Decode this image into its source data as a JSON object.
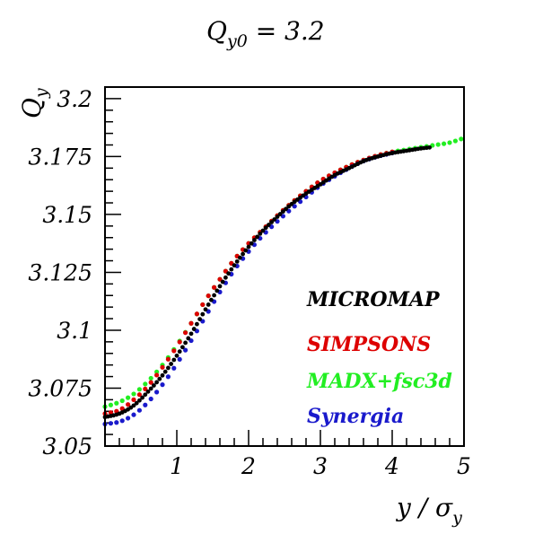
{
  "chart_data": {
    "type": "scatter",
    "title": "Qy0 = 3.2",
    "xlabel": "y / σy",
    "ylabel": "Qy",
    "xlim": [
      0,
      5
    ],
    "ylim": [
      3.05,
      3.205
    ],
    "x_ticks": [
      1,
      2,
      3,
      4,
      5
    ],
    "y_ticks": [
      3.05,
      3.075,
      3.1,
      3.125,
      3.15,
      3.175,
      3.2
    ],
    "x_tick_labels": [
      "1",
      "2",
      "3",
      "4",
      "5"
    ],
    "y_tick_labels": [
      "3.05",
      "3.075",
      "3.1",
      "3.125",
      "3.15",
      "3.175",
      "3.2"
    ],
    "grid": false,
    "legend_position": "lower-right",
    "series": [
      {
        "name": "MICROMAP",
        "color": "#000000",
        "x_range": [
          0.0,
          4.55
        ],
        "points": [
          [
            0.0,
            3.0625
          ],
          [
            0.2,
            3.064
          ],
          [
            0.4,
            3.0675
          ],
          [
            0.6,
            3.0735
          ],
          [
            0.8,
            3.0805
          ],
          [
            1.0,
            3.089
          ],
          [
            1.2,
            3.0985
          ],
          [
            1.4,
            3.109
          ],
          [
            1.6,
            3.119
          ],
          [
            1.8,
            3.128
          ],
          [
            2.0,
            3.136
          ],
          [
            2.2,
            3.143
          ],
          [
            2.4,
            3.149
          ],
          [
            2.6,
            3.1545
          ],
          [
            2.8,
            3.159
          ],
          [
            3.0,
            3.163
          ],
          [
            3.2,
            3.167
          ],
          [
            3.4,
            3.17
          ],
          [
            3.6,
            3.173
          ],
          [
            3.8,
            3.175
          ],
          [
            4.0,
            3.1765
          ],
          [
            4.2,
            3.1775
          ],
          [
            4.4,
            3.1785
          ],
          [
            4.55,
            3.179
          ]
        ]
      },
      {
        "name": "SIMPSONS",
        "color": "#dd0000",
        "x_range": [
          0.0,
          4.0
        ],
        "points": [
          [
            0.0,
            3.064
          ],
          [
            0.2,
            3.0655
          ],
          [
            0.4,
            3.07
          ],
          [
            0.6,
            3.076
          ],
          [
            0.8,
            3.084
          ],
          [
            1.0,
            3.093
          ],
          [
            1.2,
            3.103
          ],
          [
            1.4,
            3.113
          ],
          [
            1.6,
            3.122
          ],
          [
            1.8,
            3.1305
          ],
          [
            2.0,
            3.1375
          ],
          [
            2.2,
            3.1435
          ],
          [
            2.4,
            3.1495
          ],
          [
            2.6,
            3.155
          ],
          [
            2.8,
            3.16
          ],
          [
            3.0,
            3.1645
          ],
          [
            3.2,
            3.168
          ],
          [
            3.4,
            3.171
          ],
          [
            3.6,
            3.1735
          ],
          [
            3.8,
            3.1755
          ],
          [
            4.0,
            3.177
          ]
        ]
      },
      {
        "name": "MADX+fsc3d",
        "color": "#22ee22",
        "x_range": [
          0.0,
          5.0
        ],
        "points": [
          [
            0.0,
            3.067
          ],
          [
            0.2,
            3.069
          ],
          [
            0.4,
            3.0725
          ],
          [
            0.6,
            3.078
          ],
          [
            0.8,
            3.085
          ],
          [
            1.0,
            3.0935
          ],
          [
            1.2,
            3.103
          ],
          [
            1.4,
            3.113
          ],
          [
            1.6,
            3.122
          ],
          [
            1.8,
            3.1305
          ],
          [
            2.0,
            3.1375
          ],
          [
            2.2,
            3.1435
          ],
          [
            2.4,
            3.1495
          ],
          [
            2.6,
            3.155
          ],
          [
            2.8,
            3.16
          ],
          [
            3.0,
            3.1645
          ],
          [
            3.2,
            3.168
          ],
          [
            3.4,
            3.171
          ],
          [
            3.6,
            3.1735
          ],
          [
            3.8,
            3.1755
          ],
          [
            4.0,
            3.177
          ],
          [
            4.2,
            3.178
          ],
          [
            4.4,
            3.179
          ],
          [
            4.6,
            3.18
          ],
          [
            4.8,
            3.181
          ],
          [
            5.0,
            3.183
          ]
        ]
      },
      {
        "name": "Synergia",
        "color": "#1a1acc",
        "x_range": [
          0.0,
          4.0
        ],
        "points": [
          [
            0.0,
            3.0595
          ],
          [
            0.2,
            3.0605
          ],
          [
            0.4,
            3.0635
          ],
          [
            0.6,
            3.069
          ],
          [
            0.8,
            3.0765
          ],
          [
            1.0,
            3.0855
          ],
          [
            1.2,
            3.0955
          ],
          [
            1.4,
            3.106
          ],
          [
            1.6,
            3.1165
          ],
          [
            1.8,
            3.126
          ],
          [
            2.0,
            3.134
          ],
          [
            2.2,
            3.141
          ],
          [
            2.4,
            3.147
          ],
          [
            2.6,
            3.1525
          ],
          [
            2.8,
            3.1575
          ],
          [
            3.0,
            3.1625
          ],
          [
            3.2,
            3.1665
          ],
          [
            3.4,
            3.17
          ],
          [
            3.6,
            3.173
          ],
          [
            3.8,
            3.175
          ],
          [
            4.0,
            3.1765
          ]
        ]
      }
    ]
  }
}
